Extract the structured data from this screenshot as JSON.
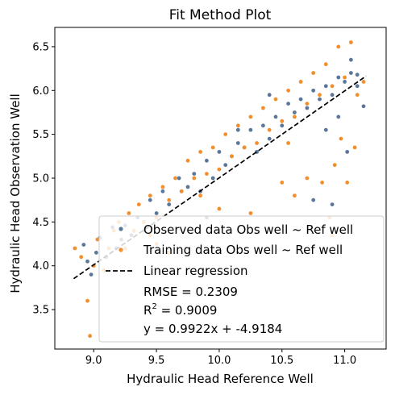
{
  "chart_data": {
    "type": "scatter",
    "title": "Fit Method Plot",
    "xlabel": "Hydraulic Head Reference Well",
    "ylabel": "Hydraulic Head Observation Well",
    "xlim": [
      8.69,
      11.33
    ],
    "ylim": [
      3.05,
      6.72
    ],
    "xticks": [
      "9.0",
      "9.5",
      "10.0",
      "10.5",
      "11.0"
    ],
    "yticks": [
      "3.5",
      "4.0",
      "4.5",
      "5.0",
      "5.5",
      "6.0",
      "6.5"
    ],
    "xtick_values": [
      9.0,
      9.5,
      10.0,
      10.5,
      11.0
    ],
    "ytick_values": [
      3.5,
      4.0,
      4.5,
      5.0,
      5.5,
      6.0,
      6.5
    ],
    "grid": false,
    "legend_position": "lower-right",
    "series": [
      {
        "name": "Observed data Obs well ~ Ref well",
        "color": "#5a7699",
        "points": [
          [
            8.92,
            4.24
          ],
          [
            8.95,
            4.05
          ],
          [
            8.98,
            3.9
          ],
          [
            9.02,
            4.15
          ],
          [
            9.05,
            4.32
          ],
          [
            9.1,
            4.1
          ],
          [
            9.15,
            4.44
          ],
          [
            9.18,
            4.2
          ],
          [
            9.22,
            4.3
          ],
          [
            9.25,
            4.46
          ],
          [
            9.3,
            4.35
          ],
          [
            9.35,
            4.55
          ],
          [
            9.4,
            4.4
          ],
          [
            9.45,
            4.75
          ],
          [
            9.5,
            4.6
          ],
          [
            9.55,
            4.85
          ],
          [
            9.6,
            4.7
          ],
          [
            9.68,
            5.0
          ],
          [
            9.75,
            4.9
          ],
          [
            9.8,
            5.05
          ],
          [
            9.85,
            4.85
          ],
          [
            9.9,
            5.2
          ],
          [
            9.95,
            5.0
          ],
          [
            10.0,
            5.3
          ],
          [
            10.05,
            5.15
          ],
          [
            10.1,
            5.25
          ],
          [
            10.15,
            5.4
          ],
          [
            10.2,
            5.35
          ],
          [
            10.25,
            5.55
          ],
          [
            10.3,
            5.3
          ],
          [
            10.35,
            5.6
          ],
          [
            10.4,
            5.45
          ],
          [
            10.45,
            5.7
          ],
          [
            10.5,
            5.6
          ],
          [
            10.55,
            5.85
          ],
          [
            10.6,
            5.75
          ],
          [
            10.65,
            5.9
          ],
          [
            10.7,
            5.8
          ],
          [
            10.75,
            6.0
          ],
          [
            10.8,
            5.9
          ],
          [
            10.85,
            6.05
          ],
          [
            10.9,
            5.95
          ],
          [
            10.95,
            6.15
          ],
          [
            11.0,
            6.1
          ],
          [
            11.05,
            6.2
          ],
          [
            11.1,
            6.05
          ],
          [
            11.15,
            5.82
          ],
          [
            10.75,
            4.75
          ],
          [
            10.9,
            4.7
          ],
          [
            10.85,
            5.55
          ],
          [
            10.95,
            5.7
          ],
          [
            11.02,
            5.3
          ],
          [
            11.05,
            6.35
          ],
          [
            11.1,
            6.18
          ],
          [
            10.4,
            5.95
          ],
          [
            10.3,
            5.3
          ],
          [
            10.15,
            5.55
          ],
          [
            9.9,
            4.55
          ],
          [
            9.7,
            4.85
          ]
        ]
      },
      {
        "name": "Training data Obs well ~ Ref well",
        "color": "#f28e2b",
        "points": [
          [
            8.85,
            4.2
          ],
          [
            8.9,
            4.1
          ],
          [
            8.95,
            3.6
          ],
          [
            8.97,
            3.2
          ],
          [
            9.0,
            4.0
          ],
          [
            9.03,
            4.3
          ],
          [
            9.08,
            3.95
          ],
          [
            9.12,
            4.2
          ],
          [
            9.16,
            4.4
          ],
          [
            9.2,
            4.5
          ],
          [
            9.25,
            4.2
          ],
          [
            9.28,
            4.6
          ],
          [
            9.32,
            4.4
          ],
          [
            9.36,
            4.7
          ],
          [
            9.4,
            4.5
          ],
          [
            9.45,
            4.8
          ],
          [
            9.5,
            4.55
          ],
          [
            9.55,
            4.9
          ],
          [
            9.6,
            4.75
          ],
          [
            9.65,
            5.0
          ],
          [
            9.7,
            4.85
          ],
          [
            9.75,
            5.2
          ],
          [
            9.8,
            5.0
          ],
          [
            9.85,
            5.3
          ],
          [
            9.9,
            5.05
          ],
          [
            9.95,
            5.35
          ],
          [
            10.0,
            5.1
          ],
          [
            10.05,
            5.5
          ],
          [
            10.1,
            5.25
          ],
          [
            10.15,
            5.6
          ],
          [
            10.2,
            5.35
          ],
          [
            10.25,
            5.7
          ],
          [
            10.3,
            5.4
          ],
          [
            10.35,
            5.8
          ],
          [
            10.4,
            5.55
          ],
          [
            10.45,
            5.9
          ],
          [
            10.5,
            5.65
          ],
          [
            10.55,
            6.0
          ],
          [
            10.6,
            5.7
          ],
          [
            10.65,
            6.1
          ],
          [
            10.7,
            5.85
          ],
          [
            10.75,
            6.2
          ],
          [
            10.8,
            5.95
          ],
          [
            10.85,
            6.3
          ],
          [
            10.9,
            6.05
          ],
          [
            10.95,
            6.5
          ],
          [
            11.0,
            6.15
          ],
          [
            11.05,
            6.55
          ],
          [
            11.1,
            5.95
          ],
          [
            11.15,
            6.1
          ],
          [
            10.82,
            4.95
          ],
          [
            10.88,
            4.55
          ],
          [
            10.9,
            4.35
          ],
          [
            10.92,
            5.15
          ],
          [
            10.97,
            5.45
          ],
          [
            11.02,
            4.95
          ],
          [
            11.08,
            5.35
          ],
          [
            10.7,
            5.0
          ],
          [
            10.6,
            4.8
          ],
          [
            10.55,
            5.4
          ],
          [
            10.5,
            4.95
          ],
          [
            10.25,
            4.6
          ],
          [
            10.0,
            4.65
          ],
          [
            9.5,
            4.25
          ],
          [
            9.6,
            4.15
          ],
          [
            9.45,
            4.35
          ],
          [
            9.85,
            4.8
          ]
        ]
      }
    ],
    "regression": {
      "name": "Linear regression",
      "slope": 0.9922,
      "intercept": -4.9184,
      "x_range": [
        8.84,
        11.17
      ],
      "color": "#000000"
    },
    "annotation_lines": [
      {
        "prefix": "RMSE = 0.2309",
        "sup": "",
        "suffix": ""
      },
      {
        "prefix": "R",
        "sup": "2",
        "suffix": " = 0.9009"
      },
      {
        "prefix": "y = 0.9922x + -4.9184",
        "sup": "",
        "suffix": ""
      }
    ]
  }
}
